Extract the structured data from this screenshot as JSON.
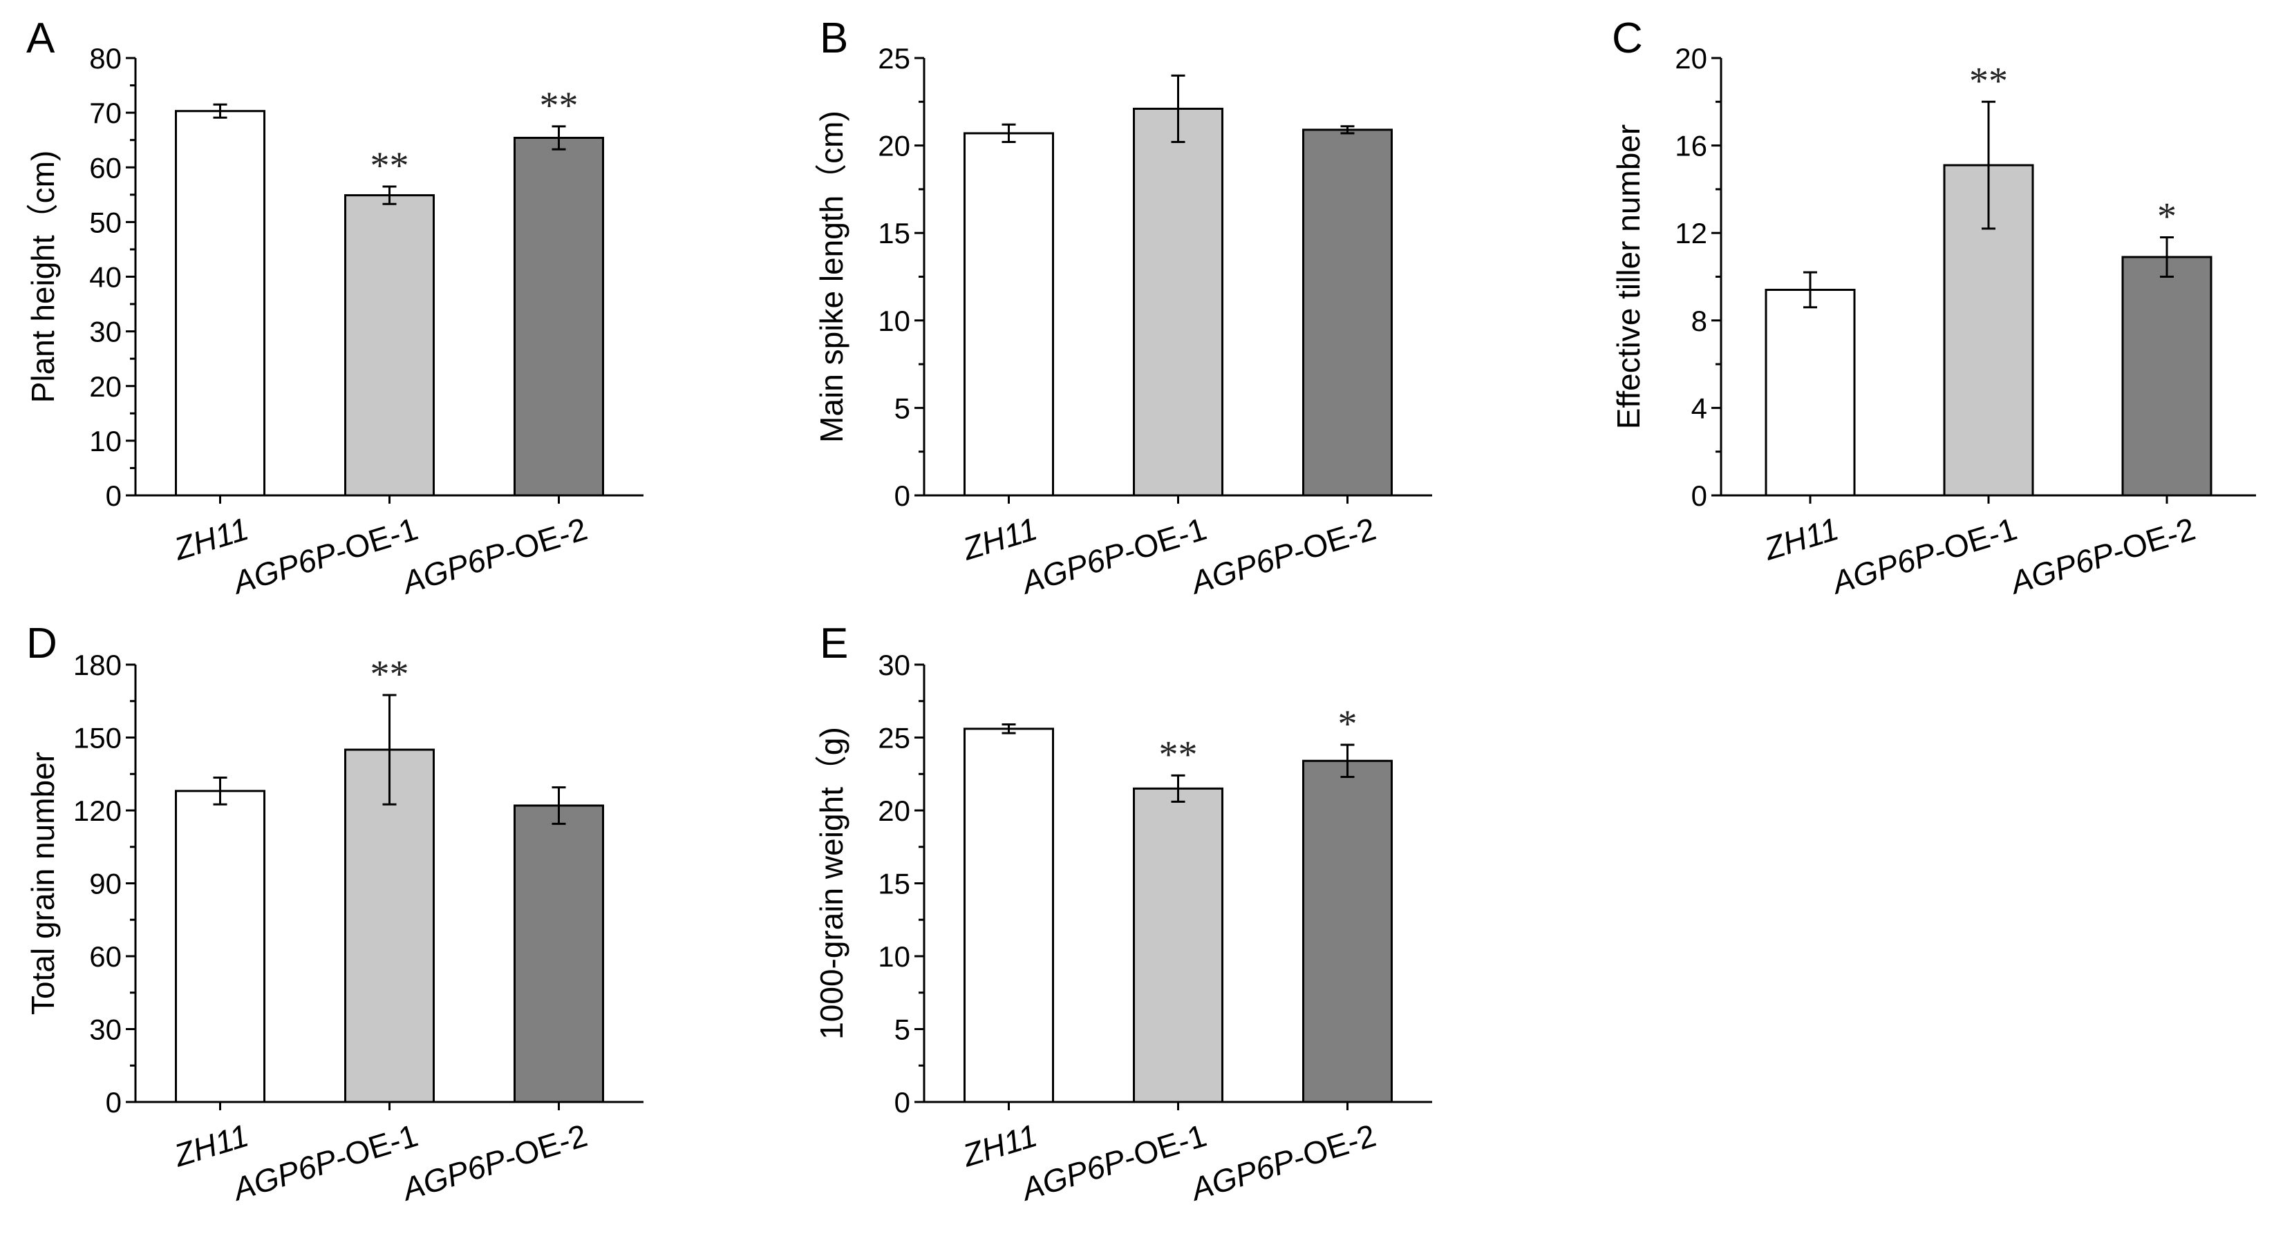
{
  "colors": {
    "ZH11": "#ffffff",
    "OE1": "#c8c8c8",
    "OE2": "#808080",
    "axis": "#000000"
  },
  "chart_data": [
    {
      "panel": "A",
      "type": "bar",
      "categories": [
        {
          "italic": "ZH11",
          "plain": ""
        },
        {
          "italic": "AGP6P",
          "plain": "-OE-1"
        },
        {
          "italic": "AGP6P",
          "plain": "-OE-2"
        }
      ],
      "values": [
        70.3,
        54.9,
        65.4
      ],
      "errors": [
        1.2,
        1.6,
        2.1
      ],
      "significance": [
        "",
        "**",
        "**"
      ],
      "ylabel": "Plant height（cm)",
      "ylim": [
        0,
        80
      ],
      "yticks": [
        "0",
        "10",
        "20",
        "30",
        "40",
        "50",
        "60",
        "70",
        "80"
      ]
    },
    {
      "panel": "B",
      "type": "bar",
      "categories": [
        {
          "italic": "ZH11",
          "plain": ""
        },
        {
          "italic": "AGP6P",
          "plain": "-OE-1"
        },
        {
          "italic": "AGP6P",
          "plain": "-OE-2"
        }
      ],
      "values": [
        20.7,
        22.1,
        20.9
      ],
      "errors": [
        0.5,
        1.9,
        0.2
      ],
      "significance": [
        "",
        "",
        ""
      ],
      "ylabel": "Main spike length（cm)",
      "ylim": [
        0,
        25
      ],
      "yticks": [
        "0",
        "5",
        "10",
        "15",
        "20",
        "25"
      ]
    },
    {
      "panel": "C",
      "type": "bar",
      "categories": [
        {
          "italic": "ZH11",
          "plain": ""
        },
        {
          "italic": "AGP6P",
          "plain": "-OE-1"
        },
        {
          "italic": "AGP6P",
          "plain": "-OE-2"
        }
      ],
      "values": [
        9.4,
        15.1,
        10.9
      ],
      "errors": [
        0.8,
        2.9,
        0.9
      ],
      "significance": [
        "",
        "**",
        "*"
      ],
      "ylabel": "Effective tiller number",
      "ylim": [
        0,
        20
      ],
      "yticks": [
        "0",
        "4",
        "8",
        "12",
        "16",
        "20"
      ]
    },
    {
      "panel": "D",
      "type": "bar",
      "categories": [
        {
          "italic": "ZH11",
          "plain": ""
        },
        {
          "italic": "AGP6P",
          "plain": "-OE-1"
        },
        {
          "italic": "AGP6P",
          "plain": "-OE-2"
        }
      ],
      "values": [
        128,
        145,
        122
      ],
      "errors": [
        5.5,
        22.5,
        7.5
      ],
      "significance": [
        "",
        "**",
        ""
      ],
      "ylabel": "Total grain number",
      "ylim": [
        0,
        180
      ],
      "yticks": [
        "0",
        "30",
        "60",
        "90",
        "120",
        "150",
        "180"
      ]
    },
    {
      "panel": "E",
      "type": "bar",
      "categories": [
        {
          "italic": "ZH11",
          "plain": ""
        },
        {
          "italic": "AGP6P",
          "plain": "-OE-1"
        },
        {
          "italic": "AGP6P",
          "plain": "-OE-2"
        }
      ],
      "values": [
        25.6,
        21.5,
        23.4
      ],
      "errors": [
        0.3,
        0.9,
        1.1
      ],
      "significance": [
        "",
        "**",
        "*"
      ],
      "ylabel": "1000-grain weight（g)",
      "ylim": [
        0,
        30
      ],
      "yticks": [
        "0",
        "5",
        "10",
        "15",
        "20",
        "25",
        "30"
      ]
    }
  ]
}
